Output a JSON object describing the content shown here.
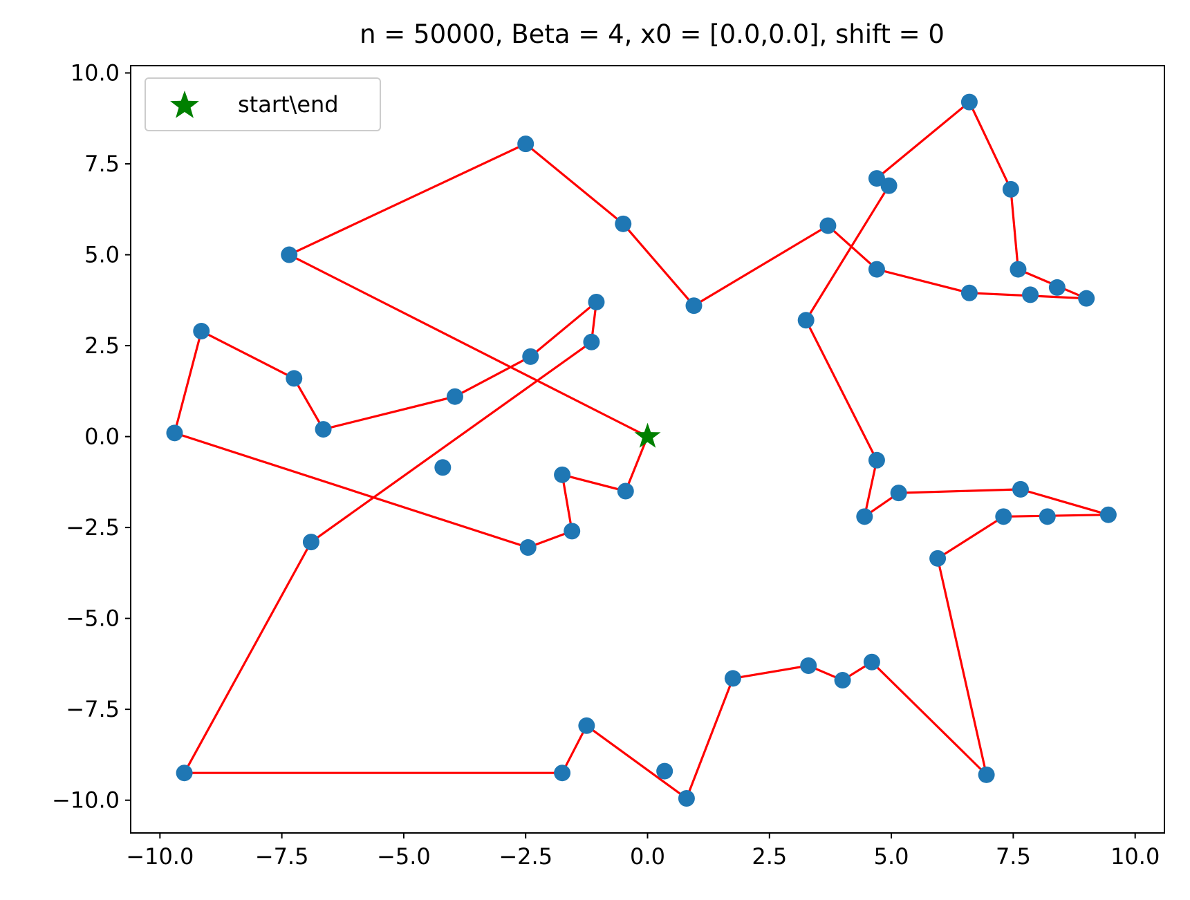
{
  "chart_data": {
    "type": "scatter",
    "title": "n = 50000, Beta = 4, x0 = [0.0,0.0], shift = 0",
    "xlabel": "",
    "ylabel": "",
    "xlim": [
      -10.6,
      10.6
    ],
    "ylim": [
      -10.9,
      10.2
    ],
    "xticks": [
      -10.0,
      -7.5,
      -5.0,
      -2.5,
      0.0,
      2.5,
      5.0,
      7.5,
      10.0
    ],
    "xtick_labels": [
      "−10.0",
      "−7.5",
      "−5.0",
      "−2.5",
      "0.0",
      "2.5",
      "5.0",
      "7.5",
      "10.0"
    ],
    "yticks": [
      10.0,
      7.5,
      5.0,
      2.5,
      0.0,
      -2.5,
      -5.0,
      -7.5,
      -10.0
    ],
    "ytick_labels": [
      "10.0",
      "7.5",
      "5.0",
      "2.5",
      "0.0",
      "−2.5",
      "−5.0",
      "−7.5",
      "−10.0"
    ],
    "grid": false,
    "legend": {
      "location": "upper left",
      "entries": [
        {
          "label": "start\\end",
          "marker": "star",
          "color": "#008000"
        }
      ]
    },
    "colors": {
      "points": "#1f77b4",
      "route": "#ff0000",
      "start": "#008000"
    },
    "start": [
      0.0,
      0.0
    ],
    "points": [
      [
        -9.7,
        0.1
      ],
      [
        -9.15,
        2.9
      ],
      [
        -7.25,
        1.6
      ],
      [
        -6.65,
        0.2
      ],
      [
        -3.95,
        1.1
      ],
      [
        -2.4,
        2.2
      ],
      [
        -1.05,
        3.7
      ],
      [
        -1.15,
        2.6
      ],
      [
        -4.2,
        -0.85
      ],
      [
        -6.9,
        -2.9
      ],
      [
        -9.5,
        -9.25
      ],
      [
        -1.75,
        -9.25
      ],
      [
        -1.25,
        -7.95
      ],
      [
        0.35,
        -9.2
      ],
      [
        0.8,
        -9.95
      ],
      [
        1.75,
        -6.65
      ],
      [
        3.3,
        -6.3
      ],
      [
        4.0,
        -6.7
      ],
      [
        4.6,
        -6.2
      ],
      [
        6.95,
        -9.3
      ],
      [
        5.95,
        -3.35
      ],
      [
        7.3,
        -2.2
      ],
      [
        8.2,
        -2.2
      ],
      [
        9.45,
        -2.15
      ],
      [
        7.65,
        -1.45
      ],
      [
        5.15,
        -1.55
      ],
      [
        4.45,
        -2.2
      ],
      [
        4.7,
        -0.65
      ],
      [
        3.25,
        3.2
      ],
      [
        4.95,
        6.9
      ],
      [
        4.7,
        7.1
      ],
      [
        6.6,
        9.2
      ],
      [
        7.45,
        6.8
      ],
      [
        7.6,
        4.6
      ],
      [
        8.4,
        4.1
      ],
      [
        9.0,
        3.8
      ],
      [
        7.85,
        3.9
      ],
      [
        6.6,
        3.95
      ],
      [
        4.7,
        4.6
      ],
      [
        3.7,
        5.8
      ],
      [
        0.95,
        3.6
      ],
      [
        -0.5,
        5.85
      ],
      [
        -2.5,
        8.05
      ],
      [
        -7.35,
        5.0
      ],
      [
        -2.45,
        -3.05
      ],
      [
        -1.55,
        -2.6
      ],
      [
        -1.75,
        -1.05
      ],
      [
        -0.45,
        -1.5
      ]
    ],
    "route": [
      [
        0.0,
        0.0
      ],
      [
        -7.35,
        5.0
      ],
      [
        -2.5,
        8.05
      ],
      [
        -0.5,
        5.85
      ],
      [
        0.95,
        3.6
      ],
      [
        3.7,
        5.8
      ],
      [
        4.7,
        4.6
      ],
      [
        6.6,
        3.95
      ],
      [
        9.0,
        3.8
      ],
      [
        7.6,
        4.6
      ],
      [
        7.45,
        6.8
      ],
      [
        6.6,
        9.2
      ],
      [
        4.7,
        7.1
      ],
      [
        4.95,
        6.9
      ],
      [
        3.25,
        3.2
      ],
      [
        4.7,
        -0.65
      ],
      [
        4.45,
        -2.2
      ],
      [
        5.15,
        -1.55
      ],
      [
        7.65,
        -1.45
      ],
      [
        9.45,
        -2.15
      ],
      [
        7.3,
        -2.2
      ],
      [
        5.95,
        -3.35
      ],
      [
        6.95,
        -9.3
      ],
      [
        4.6,
        -6.2
      ],
      [
        4.0,
        -6.7
      ],
      [
        3.3,
        -6.3
      ],
      [
        1.75,
        -6.65
      ],
      [
        0.8,
        -9.95
      ],
      [
        -1.25,
        -7.95
      ],
      [
        -1.75,
        -9.25
      ],
      [
        -9.5,
        -9.25
      ],
      [
        -6.9,
        -2.9
      ],
      [
        -1.15,
        2.6
      ],
      [
        -1.05,
        3.7
      ],
      [
        -2.4,
        2.2
      ],
      [
        -3.95,
        1.1
      ],
      [
        -6.65,
        0.2
      ],
      [
        -7.25,
        1.6
      ],
      [
        -9.15,
        2.9
      ],
      [
        -9.7,
        0.1
      ],
      [
        -2.45,
        -3.05
      ],
      [
        -1.55,
        -2.6
      ],
      [
        -1.75,
        -1.05
      ],
      [
        -0.45,
        -1.5
      ],
      [
        0.0,
        0.0
      ]
    ]
  }
}
